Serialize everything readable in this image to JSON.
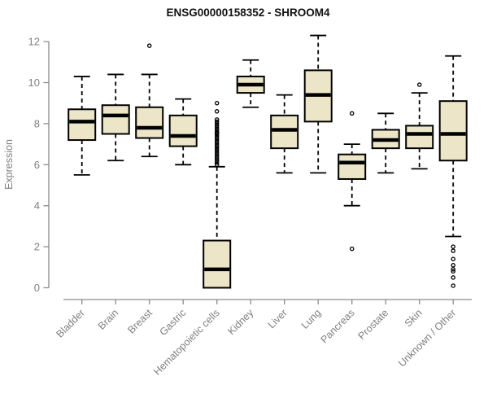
{
  "title": "ENSG00000158352 - SHROOM4",
  "colors": {
    "box_fill": "#ece5c8",
    "box_border": "#000000",
    "median": "#000000",
    "whisker": "#000000",
    "outlier": "#000000",
    "axis": "#8a8a8a",
    "tick_label": "#7f7f7f",
    "title": "#111111",
    "background": "#ffffff"
  },
  "chart_data": {
    "type": "boxplot",
    "title": "ENSG00000158352 - SHROOM4",
    "xlabel": "",
    "ylabel": "Expression",
    "ylim": [
      0,
      12
    ],
    "yticks": [
      0,
      2,
      4,
      6,
      8,
      10,
      12
    ],
    "grid": false,
    "legend": "none",
    "categories": [
      "Bladder",
      "Brain",
      "Breast",
      "Gastric",
      "Hematopoietic cells",
      "Kidney",
      "Liver",
      "Lung",
      "Pancreas",
      "Prostate",
      "Skin",
      "Unknown / Other"
    ],
    "series": [
      {
        "name": "Bladder",
        "whisker_low": 5.5,
        "q1": 7.2,
        "median": 8.1,
        "q3": 8.7,
        "whisker_high": 10.3,
        "outliers": []
      },
      {
        "name": "Brain",
        "whisker_low": 6.2,
        "q1": 7.5,
        "median": 8.4,
        "q3": 8.9,
        "whisker_high": 10.4,
        "outliers": []
      },
      {
        "name": "Breast",
        "whisker_low": 6.4,
        "q1": 7.3,
        "median": 7.8,
        "q3": 8.8,
        "whisker_high": 10.4,
        "outliers": [
          11.8
        ]
      },
      {
        "name": "Gastric",
        "whisker_low": 6.0,
        "q1": 6.9,
        "median": 7.4,
        "q3": 8.4,
        "whisker_high": 9.2,
        "outliers": []
      },
      {
        "name": "Hematopoietic cells",
        "whisker_low": 0.0,
        "q1": 0.0,
        "median": 0.9,
        "q3": 2.3,
        "whisker_high": 5.9,
        "outliers": [
          9.0,
          8.6,
          8.2,
          8.1,
          8.0,
          7.9,
          7.8,
          7.7,
          7.6,
          7.55,
          7.5,
          7.4,
          7.3,
          7.2,
          7.1,
          7.0,
          6.9,
          6.8,
          6.7,
          6.6,
          6.5,
          6.4,
          6.3,
          6.2,
          6.1,
          6.0
        ]
      },
      {
        "name": "Kidney",
        "whisker_low": 8.8,
        "q1": 9.5,
        "median": 9.9,
        "q3": 10.3,
        "whisker_high": 11.1,
        "outliers": []
      },
      {
        "name": "Liver",
        "whisker_low": 5.6,
        "q1": 6.8,
        "median": 7.7,
        "q3": 8.4,
        "whisker_high": 9.4,
        "outliers": []
      },
      {
        "name": "Lung",
        "whisker_low": 5.6,
        "q1": 8.1,
        "median": 9.4,
        "q3": 10.6,
        "whisker_high": 12.3,
        "outliers": []
      },
      {
        "name": "Pancreas",
        "whisker_low": 4.0,
        "q1": 5.3,
        "median": 6.1,
        "q3": 6.5,
        "whisker_high": 7.0,
        "outliers": [
          8.5,
          1.9
        ]
      },
      {
        "name": "Prostate",
        "whisker_low": 5.6,
        "q1": 6.8,
        "median": 7.2,
        "q3": 7.7,
        "whisker_high": 8.5,
        "outliers": []
      },
      {
        "name": "Skin",
        "whisker_low": 5.8,
        "q1": 6.8,
        "median": 7.5,
        "q3": 7.9,
        "whisker_high": 9.5,
        "outliers": [
          9.9
        ]
      },
      {
        "name": "Unknown / Other",
        "whisker_low": 2.5,
        "q1": 6.2,
        "median": 7.5,
        "q3": 9.1,
        "whisker_high": 11.3,
        "outliers": [
          2.0,
          1.8,
          1.4,
          1.1,
          0.9,
          0.8,
          0.5,
          0.1
        ]
      }
    ]
  }
}
